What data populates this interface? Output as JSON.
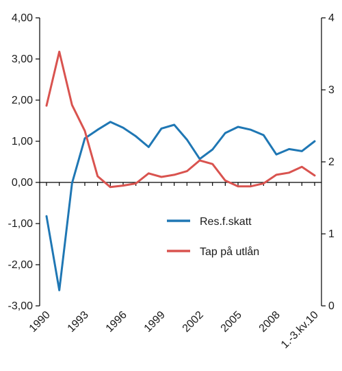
{
  "chart_data": {
    "type": "line",
    "x": [
      "1990",
      "1991",
      "1992",
      "1993",
      "1994",
      "1995",
      "1996",
      "1997",
      "1998",
      "1999",
      "2000",
      "2001",
      "2002",
      "2003",
      "2004",
      "2005",
      "2006",
      "2007",
      "2008",
      "2009",
      "2010",
      "1.-3.kv.10"
    ],
    "x_tick_labels": [
      "1990",
      "1993",
      "1996",
      "1999",
      "2002",
      "2005",
      "2008",
      "1.-3.kv.10"
    ],
    "y_left": {
      "lim": [
        -3,
        4
      ],
      "ticks": [
        "-3,00",
        "-2,00",
        "-1,00",
        "0,00",
        "1,00",
        "2,00",
        "3,00",
        "4,00"
      ]
    },
    "y_right": {
      "lim": [
        0,
        4
      ],
      "ticks": [
        "0",
        "1",
        "2",
        "3",
        "4"
      ]
    },
    "legend_position": "right-center",
    "series": [
      {
        "name": "Res.f.skatt",
        "axis": "left",
        "color": "#1f77b4",
        "values": [
          -0.82,
          -2.62,
          -0.02,
          1.07,
          1.28,
          1.47,
          1.33,
          1.12,
          0.86,
          1.31,
          1.4,
          1.04,
          0.57,
          0.8,
          1.2,
          1.35,
          1.28,
          1.15,
          0.68,
          0.81,
          0.76,
          1.0
        ]
      },
      {
        "name": "Tap på utlån",
        "axis": "right",
        "color": "#d9534f",
        "values": [
          2.78,
          3.53,
          2.79,
          2.43,
          1.8,
          1.65,
          1.67,
          1.7,
          1.84,
          1.79,
          1.82,
          1.87,
          2.02,
          1.97,
          1.74,
          1.66,
          1.66,
          1.7,
          1.82,
          1.85,
          1.93,
          1.81
        ]
      }
    ]
  }
}
